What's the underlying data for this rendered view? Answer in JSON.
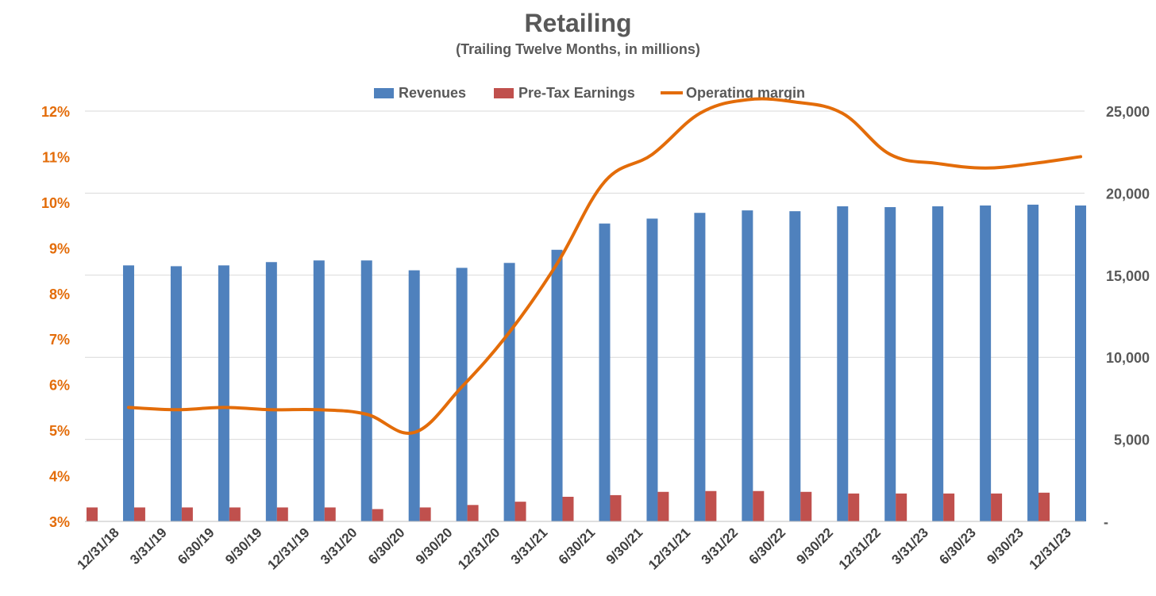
{
  "chart_data": {
    "type": "bar",
    "title": "Retailing",
    "subtitle": "(Trailing Twelve Months, in millions)",
    "categories": [
      "12/31/18",
      "3/31/19",
      "6/30/19",
      "9/30/19",
      "12/31/19",
      "3/31/20",
      "6/30/20",
      "9/30/20",
      "12/31/20",
      "3/31/21",
      "6/30/21",
      "9/30/21",
      "12/31/21",
      "3/31/22",
      "6/30/22",
      "9/30/22",
      "12/31/22",
      "3/31/23",
      "6/30/23",
      "9/30/23",
      "12/31/23"
    ],
    "series": [
      {
        "name": "Revenues",
        "type": "bar",
        "axis": "right",
        "values": [
          15600,
          15550,
          15600,
          15800,
          15900,
          15900,
          15300,
          15450,
          15750,
          16550,
          18150,
          18450,
          18800,
          18950,
          18900,
          19200,
          19150,
          19200,
          19250,
          19300,
          19250
        ]
      },
      {
        "name": "Pre-Tax Earnings",
        "type": "bar",
        "axis": "right",
        "values": [
          850,
          850,
          850,
          850,
          850,
          850,
          750,
          850,
          1000,
          1200,
          1500,
          1600,
          1800,
          1850,
          1850,
          1800,
          1700,
          1700,
          1700,
          1700,
          1750
        ]
      },
      {
        "name": "Operating margin",
        "type": "line",
        "axis": "left",
        "values": [
          5.5,
          5.45,
          5.5,
          5.45,
          5.45,
          5.35,
          4.95,
          5.95,
          7.15,
          8.65,
          10.45,
          11.05,
          11.95,
          12.25,
          12.2,
          11.95,
          11.05,
          10.85,
          10.75,
          10.85,
          11.0
        ]
      }
    ],
    "y_left": {
      "ticks": [
        "3%",
        "4%",
        "5%",
        "6%",
        "7%",
        "8%",
        "9%",
        "10%",
        "11%",
        "12%"
      ],
      "ylim": [
        3,
        12
      ]
    },
    "y_right": {
      "ticks": [
        "-",
        "5,000",
        "10,000",
        "15,000",
        "20,000",
        "25,000"
      ],
      "ylim": [
        0,
        25000
      ]
    },
    "legend": "top",
    "grid": true,
    "colors": {
      "revenues": "#4f81bd",
      "pretax": "#c0504d",
      "margin": "#e36c09",
      "left_axis_text": "#e36c09"
    }
  }
}
